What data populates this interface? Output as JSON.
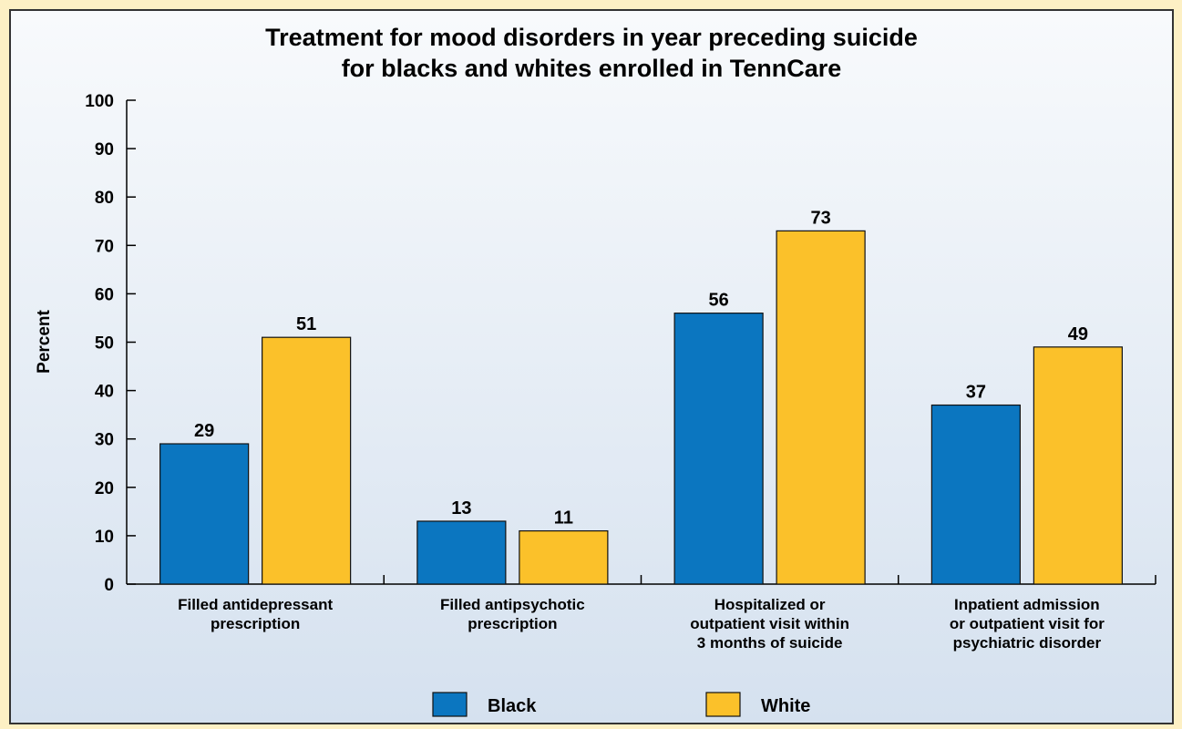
{
  "chart_data": {
    "type": "bar",
    "title": [
      "Treatment for mood disorders in year preceding suicide",
      "for blacks and whites enrolled in TennCare"
    ],
    "ylabel": "Percent",
    "ylim": [
      0,
      100
    ],
    "yticks": [
      0,
      10,
      20,
      30,
      40,
      50,
      60,
      70,
      80,
      90,
      100
    ],
    "categories": [
      [
        "Filled antidepressant",
        "prescription"
      ],
      [
        "Filled antipsychotic",
        "prescription"
      ],
      [
        "Hospitalized or",
        "outpatient visit within",
        "3 months of suicide"
      ],
      [
        "Inpatient admission",
        "or outpatient visit for",
        "psychiatric disorder"
      ]
    ],
    "series": [
      {
        "name": "Black",
        "values": [
          29,
          13,
          56,
          37
        ],
        "color": "#0b76c0"
      },
      {
        "name": "White",
        "values": [
          51,
          11,
          73,
          49
        ],
        "color": "#fbc12a"
      }
    ],
    "grid": false,
    "legend_position": "bottom-center"
  }
}
